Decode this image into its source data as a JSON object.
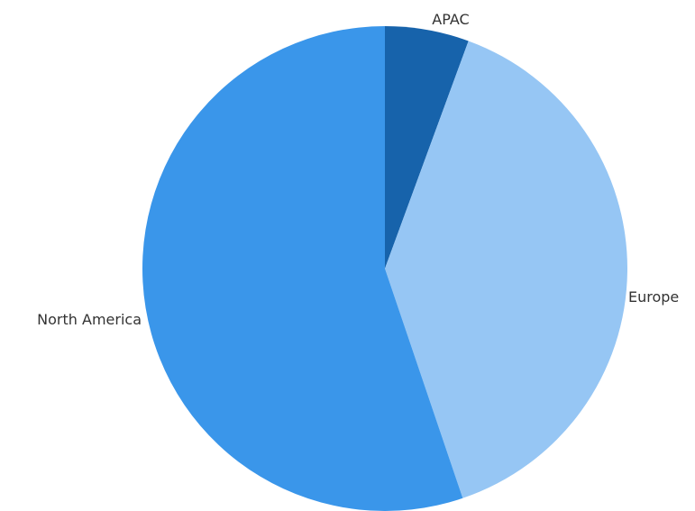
{
  "chart_data": {
    "type": "pie",
    "title": "",
    "start_angle_deg": 0,
    "direction": "clockwise",
    "legend": "none",
    "slices": [
      {
        "label": "APAC",
        "value": 0.056,
        "color": "#1763AB"
      },
      {
        "label": "Europe",
        "value": 0.392,
        "color": "#96C6F4"
      },
      {
        "label": "North America",
        "value": 0.552,
        "color": "#3A96EA"
      }
    ]
  }
}
